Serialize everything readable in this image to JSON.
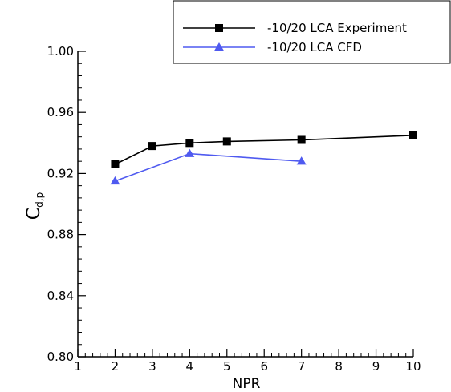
{
  "chart_data": {
    "type": "line",
    "xlabel": "NPR",
    "ylabel": {
      "main": "C",
      "subscript": "d,p"
    },
    "xlim": [
      1,
      10
    ],
    "ylim": [
      0.8,
      1.0
    ],
    "x_ticks": [
      1,
      2,
      3,
      4,
      5,
      6,
      7,
      8,
      9,
      10
    ],
    "x_tick_labels": [
      "1",
      "2",
      "3",
      "4",
      "5",
      "6",
      "7",
      "8",
      "9",
      "10"
    ],
    "y_ticks": [
      0.8,
      0.84,
      0.88,
      0.92,
      0.96,
      1.0
    ],
    "y_tick_labels": [
      "0.80",
      "0.84",
      "0.88",
      "0.92",
      "0.96",
      "1.00"
    ],
    "grid": false,
    "legend_position": "top-right",
    "series": [
      {
        "name": "-10/20 LCA Experiment",
        "color": "#000000",
        "marker": "square",
        "x": [
          2,
          3,
          4,
          5,
          7,
          10
        ],
        "y": [
          0.926,
          0.938,
          0.94,
          0.941,
          0.942,
          0.945
        ]
      },
      {
        "name": "-10/20 LCA  CFD",
        "color": "#4f5af0",
        "marker": "triangle",
        "x": [
          2,
          4,
          7
        ],
        "y": [
          0.915,
          0.933,
          0.928
        ]
      }
    ]
  }
}
